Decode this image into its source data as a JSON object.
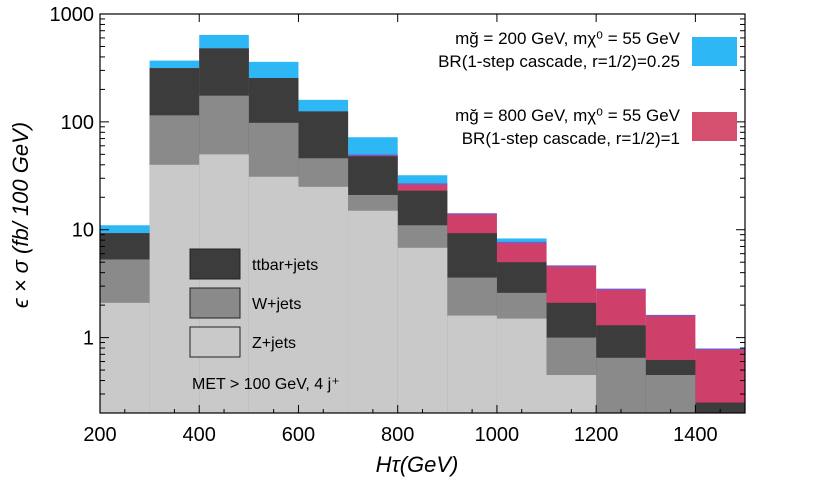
{
  "chart_data": {
    "type": "bar",
    "subtype": "stacked-log-histogram",
    "xlabel": "Hτ(GeV)",
    "ylabel": "ϵ × σ (fb/ 100 GeV)",
    "xlim": [
      200,
      1500
    ],
    "ylim_log": [
      0.2,
      1000
    ],
    "x_ticks": [
      200,
      400,
      600,
      800,
      1000,
      1200,
      1400
    ],
    "y_ticks": [
      {
        "value": 1,
        "label": "1"
      },
      {
        "value": 10,
        "label": "10"
      },
      {
        "value": 100,
        "label": "100"
      },
      {
        "value": 1000,
        "label": "1000"
      }
    ],
    "bin_edges": [
      200,
      300,
      400,
      500,
      600,
      700,
      800,
      900,
      1000,
      1100,
      1200,
      1300,
      1400,
      1500
    ],
    "series": [
      {
        "name": "Z+jets",
        "color": "#c9c9c9",
        "cumulative_values": [
          2.1,
          40,
          50,
          31,
          25,
          15,
          6.8,
          1.6,
          1.5,
          0.45,
          0.2,
          0.2,
          0.2
        ]
      },
      {
        "name": "W+jets",
        "color": "#8a8a8a",
        "cumulative_values": [
          5.3,
          115,
          175,
          98,
          46,
          21,
          11,
          3.6,
          2.6,
          1.0,
          0.65,
          0.45,
          0.2
        ]
      },
      {
        "name": "ttbar+jets",
        "color": "#3c3c3c",
        "cumulative_values": [
          9.3,
          315,
          480,
          255,
          125,
          48,
          23,
          9.3,
          5.0,
          2.1,
          1.3,
          0.62,
          0.25
        ]
      },
      {
        "name": "signal-800",
        "color": "#ce3f6a",
        "cumulative_values": [
          9.3,
          315,
          480,
          255,
          125,
          49,
          26.5,
          14,
          7.6,
          4.6,
          2.8,
          1.6,
          0.78
        ]
      },
      {
        "name": "signal-200",
        "color": "#2db7f5",
        "cumulative_values": [
          11,
          370,
          640,
          360,
          160,
          72,
          32,
          9.5,
          8.3,
          3.3,
          1.8,
          0.9,
          0.35
        ]
      }
    ],
    "legend": {
      "position": "bottom-left",
      "entries": [
        {
          "label": "ttbar+jets",
          "color": "#3c3c3c"
        },
        {
          "label": "W+jets",
          "color": "#8a8a8a"
        },
        {
          "label": "Z+jets",
          "color": "#c9c9c9"
        }
      ]
    },
    "signal_legend": {
      "position": "top-right",
      "entries": [
        {
          "line1": "mğ = 200 GeV, mχ⁰ = 55 GeV",
          "line2": "BR(1-step cascade, r=1/2)=0.25",
          "color": "#2db7f5"
        },
        {
          "line1": "mğ = 800 GeV, mχ⁰ = 55 GeV",
          "line2": "BR(1-step cascade, r=1/2)=1",
          "color": "#d5506e"
        }
      ]
    },
    "annotation": "MET > 100 GeV, 4 j⁺"
  }
}
